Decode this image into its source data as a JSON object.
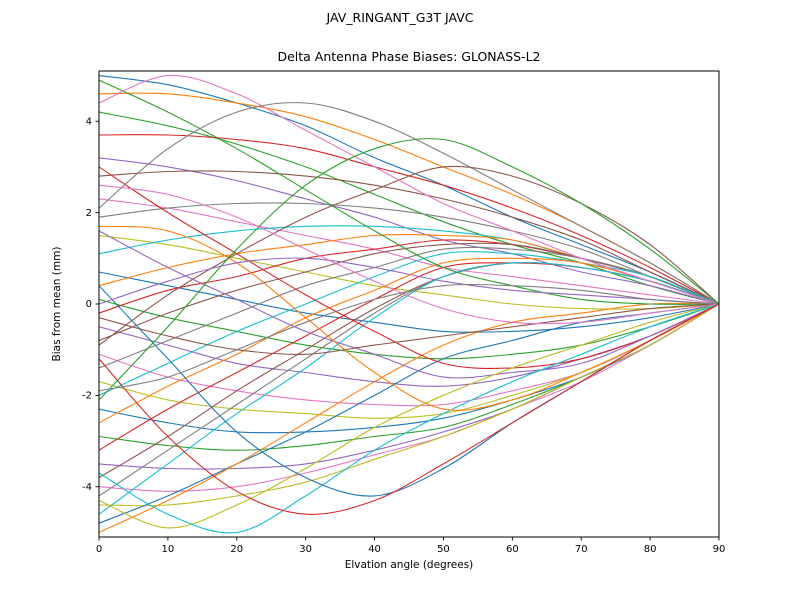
{
  "chart_data": {
    "type": "line",
    "suptitle": "JAV_RINGANT_G3T JAVC",
    "title": "Delta Antenna Phase Biases: GLONASS-L2",
    "xlabel": "Elvation angle (degrees)",
    "ylabel": "Bias from mean (mm)",
    "xlim": [
      0,
      90
    ],
    "ylim": [
      -5.1,
      5.1
    ],
    "xticks": [
      0,
      10,
      20,
      30,
      40,
      50,
      60,
      70,
      80,
      90
    ],
    "yticks": [
      -4,
      -2,
      0,
      2,
      4
    ],
    "grid": false,
    "legend": "none",
    "line_width": 1.1,
    "colors": [
      "#1f77b4",
      "#ff7f0e",
      "#2ca02c",
      "#d62728",
      "#9467bd",
      "#8c564b",
      "#e377c2",
      "#7f7f7f",
      "#bcbd22",
      "#17becf"
    ],
    "x": [
      0,
      10,
      20,
      30,
      40,
      50,
      60,
      70,
      80,
      90
    ],
    "series": [
      [
        5.0,
        4.8,
        4.4,
        3.9,
        3.2,
        2.6,
        1.9,
        1.3,
        0.7,
        0
      ],
      [
        4.6,
        4.6,
        4.4,
        4.1,
        3.6,
        3.0,
        2.4,
        1.7,
        0.9,
        0
      ],
      [
        4.2,
        3.9,
        3.5,
        3.0,
        2.4,
        1.8,
        1.3,
        0.9,
        0.4,
        0
      ],
      [
        3.7,
        3.7,
        3.6,
        3.4,
        3.0,
        2.6,
        2.1,
        1.5,
        0.8,
        0
      ],
      [
        3.2,
        3.0,
        2.7,
        2.3,
        1.9,
        1.4,
        1.1,
        0.7,
        0.4,
        0
      ],
      [
        2.8,
        2.9,
        2.9,
        2.8,
        2.6,
        2.3,
        1.9,
        1.4,
        0.7,
        0
      ],
      [
        2.3,
        2.1,
        1.8,
        1.5,
        1.2,
        0.8,
        0.6,
        0.4,
        0.2,
        0
      ],
      [
        1.9,
        2.1,
        2.2,
        2.2,
        2.1,
        1.9,
        1.6,
        1.2,
        0.6,
        0
      ],
      [
        1.5,
        1.3,
        1.0,
        0.7,
        0.4,
        0.2,
        0.0,
        -0.1,
        -0.1,
        0
      ],
      [
        1.1,
        1.4,
        1.6,
        1.7,
        1.7,
        1.6,
        1.4,
        1.0,
        0.6,
        0
      ],
      [
        0.7,
        0.4,
        0.1,
        -0.2,
        -0.4,
        -0.6,
        -0.6,
        -0.5,
        -0.3,
        0
      ],
      [
        0.4,
        0.8,
        1.1,
        1.3,
        1.5,
        1.5,
        1.4,
        1.0,
        0.6,
        0
      ],
      [
        0.1,
        -0.3,
        -0.6,
        -0.9,
        -1.1,
        -1.2,
        -1.1,
        -0.9,
        -0.5,
        0
      ],
      [
        -0.2,
        0.3,
        0.6,
        1.0,
        1.2,
        1.4,
        1.3,
        1.0,
        0.6,
        0
      ],
      [
        -0.5,
        -0.9,
        -1.3,
        -1.5,
        -1.7,
        -1.8,
        -1.6,
        -1.2,
        -0.7,
        0
      ],
      [
        -0.8,
        -0.2,
        0.3,
        0.7,
        1.1,
        1.3,
        1.3,
        1.0,
        0.6,
        0
      ],
      [
        -1.1,
        -1.6,
        -1.9,
        -2.1,
        -2.2,
        -2.2,
        -1.9,
        -1.5,
        -0.8,
        0
      ],
      [
        -1.4,
        -0.8,
        -0.2,
        0.4,
        0.8,
        1.2,
        1.2,
        1.0,
        0.6,
        0
      ],
      [
        -1.7,
        -2.1,
        -2.3,
        -2.4,
        -2.5,
        -2.4,
        -2.0,
        -1.5,
        -0.8,
        0
      ],
      [
        -2.0,
        -1.3,
        -0.6,
        0.0,
        0.6,
        1.1,
        1.1,
        0.9,
        0.6,
        0
      ],
      [
        -2.3,
        -2.6,
        -2.8,
        -2.8,
        -2.7,
        -2.5,
        -2.1,
        -1.6,
        -0.9,
        0
      ],
      [
        -2.6,
        -1.8,
        -1.1,
        -0.3,
        0.3,
        0.9,
        1.0,
        0.9,
        0.5,
        0
      ],
      [
        -2.9,
        -3.1,
        -3.2,
        -3.1,
        -2.9,
        -2.7,
        -2.2,
        -1.6,
        -0.9,
        0
      ],
      [
        -3.2,
        -2.3,
        -1.5,
        -0.7,
        0.1,
        0.8,
        0.9,
        0.8,
        0.5,
        0
      ],
      [
        -3.5,
        -3.6,
        -3.6,
        -3.5,
        -3.2,
        -2.8,
        -2.3,
        -1.6,
        -0.9,
        0
      ],
      [
        -3.8,
        -2.9,
        -1.9,
        -1.0,
        -0.1,
        0.6,
        0.9,
        0.8,
        0.5,
        0
      ],
      [
        -4.0,
        -4.1,
        -4.0,
        -3.7,
        -3.3,
        -2.9,
        -2.3,
        -1.7,
        -0.9,
        0
      ],
      [
        -4.2,
        -3.2,
        -2.2,
        -1.2,
        -0.2,
        0.6,
        0.9,
        0.8,
        0.5,
        0
      ],
      [
        -4.4,
        -4.4,
        -4.2,
        -3.9,
        -3.4,
        -2.9,
        -2.3,
        -1.6,
        -0.9,
        0
      ],
      [
        -4.6,
        -3.5,
        -2.4,
        -1.4,
        -0.3,
        0.6,
        0.9,
        0.8,
        0.5,
        0
      ],
      [
        -4.8,
        -4.2,
        -3.5,
        -2.8,
        -2.0,
        -1.2,
        -0.8,
        -0.4,
        -0.2,
        0
      ],
      [
        -5.0,
        -4.3,
        -3.5,
        -2.6,
        -1.7,
        -0.9,
        -0.4,
        -0.2,
        0.0,
        0
      ],
      [
        4.9,
        4.2,
        3.4,
        2.5,
        1.6,
        0.8,
        0.4,
        0.1,
        0.0,
        0
      ],
      [
        3.0,
        2.0,
        1.1,
        0.2,
        -0.6,
        -1.3,
        -1.4,
        -1.2,
        -0.7,
        0
      ],
      [
        1.6,
        0.8,
        0.1,
        -0.6,
        -1.1,
        -1.6,
        -1.5,
        -1.3,
        -0.7,
        0
      ],
      [
        -0.9,
        0.2,
        1.1,
        1.9,
        2.5,
        3.0,
        2.8,
        2.2,
        1.3,
        0
      ],
      [
        4.4,
        5.0,
        4.6,
        3.8,
        3.0,
        2.2,
        1.6,
        1.0,
        0.5,
        0
      ],
      [
        2.1,
        3.4,
        4.2,
        4.4,
        4.0,
        3.3,
        2.5,
        1.7,
        0.9,
        0
      ],
      [
        -4.3,
        -4.9,
        -4.4,
        -3.6,
        -2.7,
        -2.0,
        -1.4,
        -0.9,
        -0.4,
        0
      ],
      [
        -3.7,
        -4.6,
        -5.0,
        -4.2,
        -3.2,
        -2.4,
        -1.7,
        -1.1,
        -0.5,
        0
      ],
      [
        0.4,
        -1.2,
        -2.8,
        -3.8,
        -4.2,
        -3.6,
        -2.6,
        -1.7,
        -0.8,
        0
      ],
      [
        1.7,
        1.6,
        0.9,
        -0.3,
        -1.5,
        -2.3,
        -2.1,
        -1.5,
        -0.8,
        0
      ],
      [
        -2.1,
        -0.5,
        1.2,
        2.6,
        3.4,
        3.6,
        3.0,
        2.2,
        1.2,
        0
      ],
      [
        -1.2,
        -2.9,
        -4.1,
        -4.6,
        -4.3,
        -3.5,
        -2.6,
        -1.7,
        -0.8,
        0
      ],
      [
        0.0,
        0.5,
        0.9,
        1.0,
        0.8,
        0.5,
        0.3,
        0.2,
        0.1,
        0
      ],
      [
        -0.3,
        -0.7,
        -1.0,
        -1.1,
        -0.9,
        -0.7,
        -0.5,
        -0.3,
        -0.1,
        0
      ],
      [
        2.6,
        2.4,
        1.9,
        1.2,
        0.5,
        -0.1,
        -0.4,
        -0.4,
        -0.2,
        0
      ],
      [
        -1.9,
        -1.6,
        -1.0,
        -0.4,
        0.1,
        0.4,
        0.4,
        0.3,
        0.1,
        0
      ]
    ]
  }
}
